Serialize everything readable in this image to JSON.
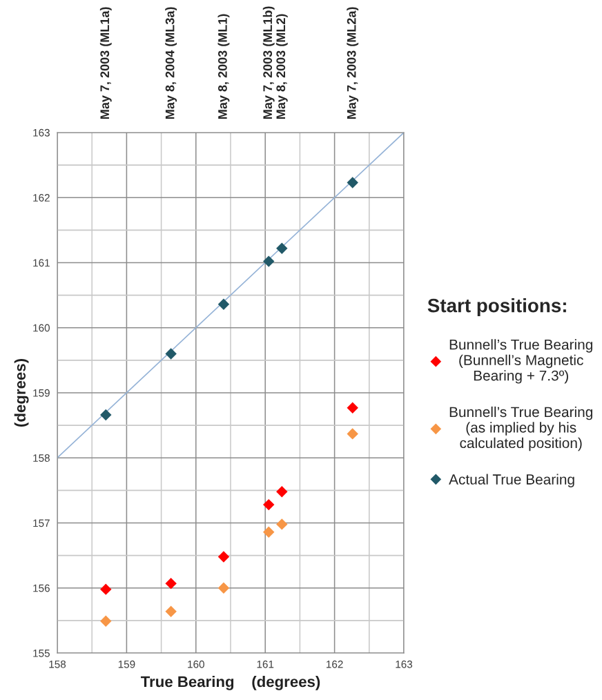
{
  "chart_data": {
    "type": "scatter",
    "xlabel": "True Bearing    (degrees)",
    "ylabel": "(degrees)",
    "legend_title": "Start positions:",
    "xlim": [
      158,
      163
    ],
    "ylim": [
      155,
      163
    ],
    "xticks": [
      158,
      {
        "value": 158.5,
        "label": null
      },
      159,
      {
        "value": 159.5,
        "label": null
      },
      160,
      {
        "value": 160.5,
        "label": null
      },
      161,
      {
        "value": 161.5,
        "label": null
      },
      162,
      {
        "value": 162.5,
        "label": null
      },
      163
    ],
    "yticks": [
      155,
      {
        "value": 155.5,
        "label": null
      },
      156,
      {
        "value": 156.5,
        "label": null
      },
      157,
      {
        "value": 157.5,
        "label": null
      },
      158,
      {
        "value": 158.5,
        "label": null
      },
      159,
      {
        "value": 159.5,
        "label": null
      },
      160,
      {
        "value": 160.5,
        "label": null
      },
      161,
      {
        "value": 161.5,
        "label": null
      },
      162,
      {
        "value": 162.5,
        "label": null
      },
      163
    ],
    "grid": true,
    "legend": "right",
    "marker": "diamond",
    "x": [
      158.7,
      159.64,
      160.4,
      161.05,
      161.24,
      162.26
    ],
    "series": [
      {
        "type": "line",
        "marker": "none",
        "color": "#95b3d7",
        "x": [
          158,
          163
        ],
        "values": [
          158,
          163
        ]
      },
      {
        "name": "Bunnell’s True Bearing\n(Bunnell’s Magnetic\nBearing + 7.3º)",
        "color": "#ff0000",
        "values": [
          155.98,
          156.07,
          156.48,
          157.28,
          157.48,
          158.77
        ]
      },
      {
        "name": "Bunnell’s True Bearing\n(as implied by his\ncalculated position)",
        "color": "#f79646",
        "values": [
          155.49,
          155.64,
          156.0,
          156.86,
          156.98,
          158.37
        ]
      },
      {
        "name": "Actual True Bearing",
        "color": "#215968",
        "values": [
          158.66,
          159.6,
          160.36,
          161.02,
          161.22,
          162.23
        ]
      }
    ],
    "annotations": [
      "May 7, 2003 (ML1a)",
      "May 8, 2004 (ML3a)",
      "May 8, 2003 (ML1)",
      "May 7, 2003 (ML1b)",
      "May 8, 2003 (ML2)",
      "May 7, 2003 (ML2a)"
    ]
  }
}
